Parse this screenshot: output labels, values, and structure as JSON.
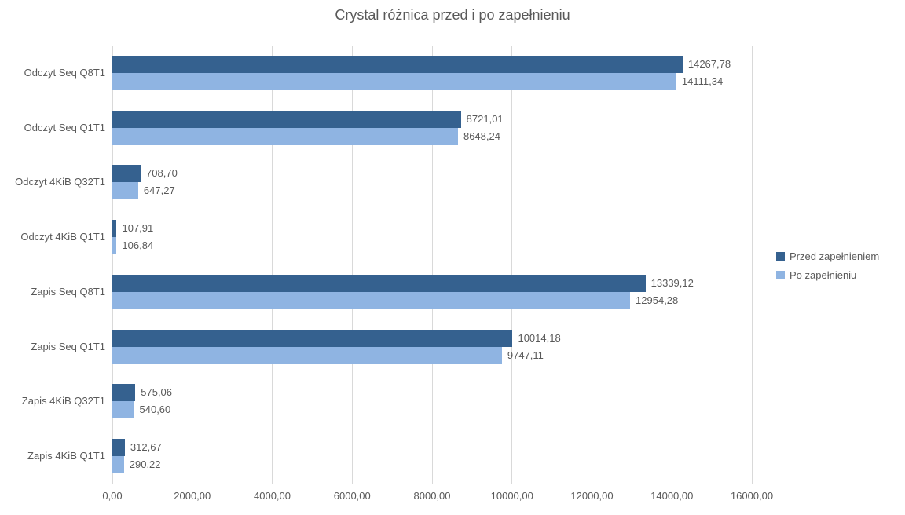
{
  "title": "Crystal różnica przed i po zapełnieniu",
  "colors": {
    "series_przed": "#35618F",
    "series_po": "#8FB4E2",
    "gridline": "#D9D9D9",
    "text": "#595959",
    "background": "#FFFFFF"
  },
  "legend": {
    "position": "right",
    "items": [
      {
        "label": "Przed zapełnieniem",
        "color": "#35618F"
      },
      {
        "label": "Po zapełnieniu",
        "color": "#8FB4E2"
      }
    ]
  },
  "chart_data": {
    "type": "bar",
    "orientation": "horizontal",
    "title": "Crystal różnica przed i po zapełnieniu",
    "categories": [
      "Odczyt Seq Q8T1",
      "Odczyt Seq Q1T1",
      "Odczyt 4KiB Q32T1",
      "Odczyt 4KiB Q1T1",
      "Zapis Seq Q8T1",
      "Zapis Seq Q1T1",
      "Zapis 4KiB Q32T1",
      "Zapis 4KiB Q1T1"
    ],
    "series": [
      {
        "name": "Przed zapełnieniem",
        "color": "#35618F",
        "values": [
          14267.78,
          8721.01,
          708.7,
          107.91,
          13339.12,
          10014.18,
          575.06,
          312.67
        ],
        "value_labels": [
          "14267,78",
          "8721,01",
          "708,70",
          "107,91",
          "13339,12",
          "10014,18",
          "575,06",
          "312,67"
        ]
      },
      {
        "name": "Po zapełnieniu",
        "color": "#8FB4E2",
        "values": [
          14111.34,
          8648.24,
          647.27,
          106.84,
          12954.28,
          9747.11,
          540.6,
          290.22
        ],
        "value_labels": [
          "14111,34",
          "8648,24",
          "647,27",
          "106,84",
          "12954,28",
          "9747,11",
          "540,60",
          "290,22"
        ]
      }
    ],
    "xlabel": "",
    "ylabel": "",
    "xlim": [
      0,
      16000
    ],
    "x_tick_interval": 2000,
    "x_tick_labels": [
      "0,00",
      "2000,00",
      "4000,00",
      "6000,00",
      "8000,00",
      "10000,00",
      "12000,00",
      "14000,00",
      "16000,00"
    ],
    "grid": true,
    "data_labels": true,
    "legend_position": "right"
  }
}
